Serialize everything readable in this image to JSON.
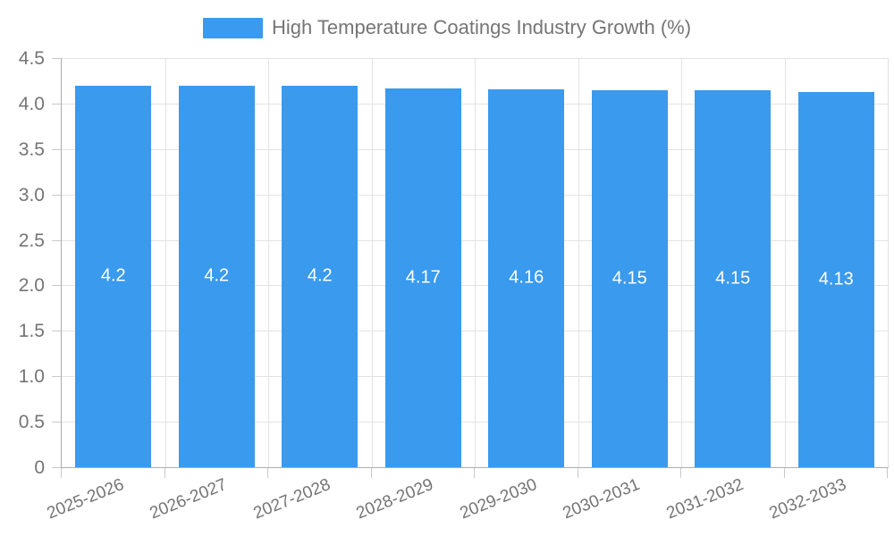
{
  "legend": {
    "entries": [
      {
        "label": "High Temperature Coatings Industry Growth (%)",
        "color": "#399aee"
      }
    ],
    "position": "top-center"
  },
  "chart_data": {
    "type": "bar",
    "title": "High Temperature Coatings Industry Growth (%)",
    "categories": [
      "2025-2026",
      "2026-2027",
      "2027-2028",
      "2028-2029",
      "2029-2030",
      "2030-2031",
      "2031-2032",
      "2032-2033"
    ],
    "series": [
      {
        "name": "High Temperature Coatings Industry Growth (%)",
        "values": [
          4.2,
          4.2,
          4.2,
          4.17,
          4.16,
          4.15,
          4.15,
          4.13
        ],
        "value_labels": [
          "4.2",
          "4.2",
          "4.2",
          "4.17",
          "4.16",
          "4.15",
          "4.15",
          "4.13"
        ],
        "color": "#399aee"
      }
    ],
    "xlabel": "",
    "ylabel": "",
    "ylim": [
      0,
      4.5
    ],
    "ytick_step": 0.5,
    "ytick_labels": [
      "0",
      "0.5",
      "1.0",
      "1.5",
      "2.0",
      "2.5",
      "3.0",
      "3.5",
      "4.0",
      "4.5"
    ],
    "grid": true,
    "legend_position": "top-center",
    "value_label_position": "middle",
    "value_label_color": "#ffffff",
    "axis_text_color": "#757575",
    "axis_line_color": "#adadad",
    "gridline_color": "#e3e3e3",
    "x_label_rotation_deg": -22
  }
}
